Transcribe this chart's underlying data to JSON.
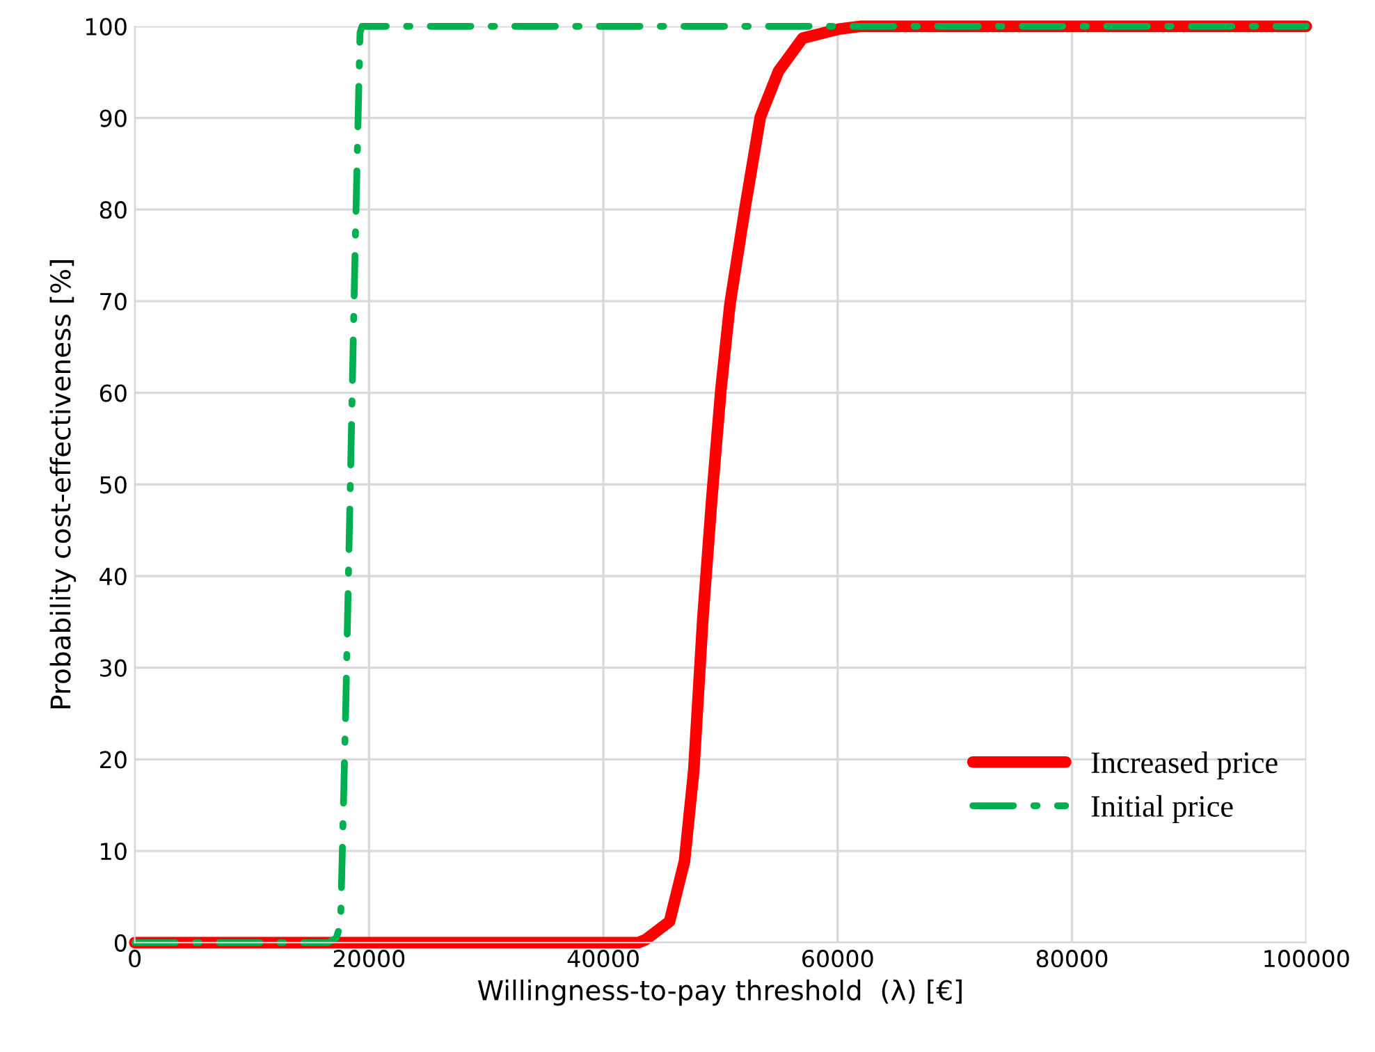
{
  "chart_data": {
    "type": "line",
    "xlabel": "Willingness-to-pay threshold  (λ) [€]",
    "ylabel": "Probability cost-effectiveness [%]",
    "xlim": [
      0,
      100000
    ],
    "xticks": [
      0,
      20000,
      40000,
      60000,
      80000,
      100000
    ],
    "ylim": [
      0,
      100
    ],
    "yticks": [
      0,
      10,
      20,
      30,
      40,
      50,
      60,
      70,
      80,
      90,
      100
    ],
    "grid": true,
    "legend": "bottom right",
    "series": [
      {
        "name": "Increased price",
        "color": "#ff0000",
        "line_style": "solid",
        "x": [
          0,
          43000,
          43580,
          45650,
          46930,
          47720,
          48490,
          49260,
          50040,
          50810,
          52100,
          53400,
          54950,
          57010,
          60120,
          62000,
          100000
        ],
        "values": [
          0,
          0,
          0.3,
          2.3,
          8.9,
          18.8,
          35.3,
          48.5,
          60.4,
          69.7,
          80.2,
          90.1,
          95.1,
          98.7,
          99.7,
          100,
          100
        ]
      },
      {
        "name": "Initial price",
        "color": "#00b050",
        "line_style": "dashdot",
        "x": [
          0,
          16500,
          17200,
          17570,
          18000,
          18400,
          18800,
          19230,
          19400,
          100000
        ],
        "values": [
          0,
          0,
          0.5,
          2,
          25,
          50,
          75,
          99.3,
          100,
          100
        ]
      }
    ]
  }
}
